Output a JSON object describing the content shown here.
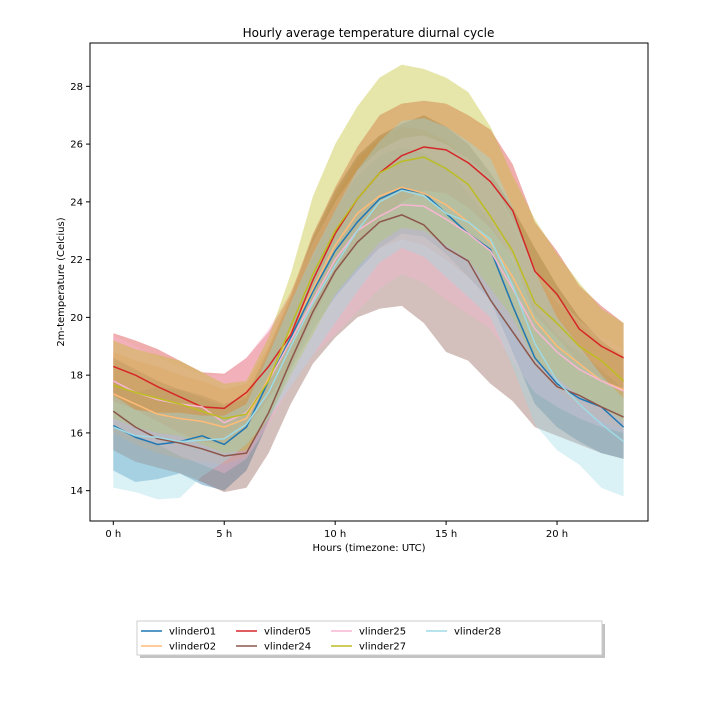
{
  "chart_data": {
    "type": "line",
    "title": "Hourly average temperature diurnal cycle",
    "xlabel": "Hours (timezone: UTC)",
    "ylabel": "2m-temperature (Celcius)",
    "xlim": [
      -1.05,
      24.1
    ],
    "ylim": [
      12.95,
      29.5
    ],
    "x": [
      0,
      1,
      2,
      3,
      4,
      5,
      6,
      7,
      8,
      9,
      10,
      11,
      12,
      13,
      14,
      15,
      16,
      17,
      18,
      19,
      20,
      21,
      22,
      23
    ],
    "xticks": [
      0,
      5,
      10,
      15,
      20
    ],
    "xtick_labels": [
      "0 h",
      "5 h",
      "10 h",
      "15 h",
      "20 h"
    ],
    "yticks": [
      14,
      16,
      18,
      20,
      22,
      24,
      26,
      28
    ],
    "ytick_labels": [
      "14",
      "16",
      "18",
      "20",
      "22",
      "24",
      "26",
      "28"
    ],
    "grid": false,
    "legend_position": "bottom-center",
    "legend_columns": 5,
    "series": [
      {
        "name": "vlinder01",
        "color": "#1f77b4",
        "mean": [
          16.25,
          15.85,
          15.6,
          15.7,
          15.9,
          15.6,
          16.2,
          17.8,
          19.3,
          20.9,
          22.3,
          23.3,
          24.1,
          24.45,
          24.3,
          23.6,
          22.9,
          22.35,
          20.4,
          18.6,
          17.7,
          17.2,
          16.9,
          16.2
        ],
        "upper": [
          17.8,
          17.4,
          17.6,
          17.5,
          17.2,
          16.9,
          17.2,
          18.7,
          20.5,
          22.1,
          23.7,
          24.9,
          25.6,
          25.9,
          25.7,
          25.2,
          24.3,
          23.3,
          22.0,
          20.3,
          19.4,
          18.8,
          18.2,
          17.5
        ],
        "lower": [
          14.7,
          14.3,
          14.4,
          14.6,
          14.2,
          14.0,
          14.7,
          16.4,
          18.2,
          19.6,
          20.7,
          21.6,
          22.4,
          22.9,
          22.8,
          22.2,
          21.4,
          20.6,
          18.8,
          17.0,
          16.2,
          15.7,
          15.3,
          15.1
        ]
      },
      {
        "name": "vlinder02",
        "color": "#ffbb78",
        "mean": [
          17.35,
          17.0,
          16.65,
          16.5,
          16.4,
          16.2,
          16.5,
          17.9,
          19.5,
          21.0,
          22.5,
          23.6,
          24.2,
          24.5,
          24.3,
          23.9,
          23.3,
          22.6,
          21.4,
          19.9,
          19.0,
          18.4,
          17.8,
          17.5
        ],
        "upper": [
          18.8,
          18.5,
          18.3,
          18.0,
          17.8,
          17.5,
          17.7,
          19.0,
          20.9,
          22.6,
          24.2,
          25.5,
          26.2,
          26.6,
          26.5,
          26.1,
          25.5,
          24.7,
          23.2,
          21.5,
          20.5,
          19.8,
          19.1,
          18.7
        ],
        "lower": [
          16.0,
          15.6,
          15.3,
          15.1,
          15.0,
          14.9,
          15.2,
          16.6,
          18.2,
          19.5,
          20.8,
          21.8,
          22.4,
          22.7,
          22.5,
          22.0,
          21.4,
          20.7,
          19.6,
          18.3,
          17.5,
          16.9,
          16.4,
          16.1
        ]
      },
      {
        "name": "vlinder05",
        "color": "#d62728",
        "mean": [
          18.3,
          18.0,
          17.6,
          17.25,
          16.9,
          16.85,
          17.4,
          18.3,
          19.4,
          21.3,
          22.9,
          24.1,
          25.0,
          25.6,
          25.9,
          25.8,
          25.35,
          24.7,
          23.7,
          21.6,
          20.8,
          19.6,
          19.0,
          18.6
        ],
        "upper": [
          19.45,
          19.2,
          18.9,
          18.5,
          18.1,
          18.05,
          18.6,
          19.5,
          20.8,
          22.9,
          24.5,
          25.9,
          27.0,
          27.4,
          27.5,
          27.4,
          27.0,
          26.5,
          25.3,
          23.3,
          22.3,
          21.1,
          20.4,
          19.8
        ],
        "lower": [
          17.1,
          16.8,
          16.4,
          16.0,
          15.7,
          15.6,
          16.2,
          17.2,
          18.3,
          20.0,
          21.5,
          22.6,
          23.4,
          24.0,
          24.4,
          24.3,
          23.8,
          23.1,
          22.1,
          20.1,
          19.3,
          18.4,
          17.9,
          17.4
        ]
      },
      {
        "name": "vlinder24",
        "color": "#8c564b",
        "mean": [
          16.75,
          16.2,
          15.8,
          15.65,
          15.45,
          15.2,
          15.3,
          16.7,
          18.5,
          20.2,
          21.6,
          22.6,
          23.3,
          23.55,
          23.2,
          22.4,
          21.95,
          20.6,
          19.5,
          18.4,
          17.6,
          17.3,
          16.9,
          16.55
        ],
        "upper": [
          18.6,
          18.2,
          17.8,
          17.5,
          17.3,
          17.0,
          17.3,
          18.9,
          20.7,
          22.8,
          24.4,
          25.6,
          26.3,
          26.7,
          27.0,
          26.6,
          26.0,
          25.0,
          23.8,
          22.4,
          21.1,
          20.0,
          19.2,
          18.6
        ],
        "lower": [
          15.4,
          15.0,
          14.8,
          14.6,
          14.3,
          13.95,
          14.1,
          15.3,
          17.0,
          18.4,
          19.3,
          20.0,
          20.3,
          20.4,
          19.8,
          18.8,
          18.5,
          17.7,
          17.1,
          16.2,
          15.9,
          15.6,
          15.3,
          15.1
        ]
      },
      {
        "name": "vlinder25",
        "color": "#f7b6d2",
        "mean": [
          17.8,
          17.4,
          17.15,
          17.0,
          16.9,
          16.35,
          16.7,
          17.8,
          19.2,
          20.6,
          22.0,
          23.0,
          23.5,
          23.9,
          23.85,
          23.4,
          22.9,
          22.3,
          21.0,
          19.6,
          18.8,
          18.2,
          17.8,
          17.45
        ],
        "upper": [
          19.4,
          19.0,
          18.6,
          18.3,
          18.0,
          18.0,
          18.6,
          19.6,
          20.9,
          22.6,
          24.0,
          25.1,
          25.8,
          26.2,
          26.3,
          26.0,
          25.5,
          24.8,
          23.4,
          21.7,
          20.7,
          19.9,
          19.3,
          18.9
        ],
        "lower": [
          16.3,
          15.9,
          15.6,
          15.2,
          14.9,
          14.6,
          15.1,
          16.3,
          17.6,
          18.7,
          19.4,
          20.2,
          21.0,
          21.5,
          21.2,
          20.6,
          20.1,
          19.6,
          18.5,
          17.4,
          16.9,
          16.5,
          16.2,
          16.0
        ]
      },
      {
        "name": "vlinder27",
        "color": "#bcbd22",
        "mean": [
          17.65,
          17.4,
          17.2,
          17.0,
          16.75,
          16.5,
          16.65,
          17.8,
          19.7,
          21.5,
          23.0,
          24.1,
          25.0,
          25.4,
          25.55,
          25.15,
          24.6,
          23.5,
          22.3,
          20.5,
          19.8,
          19.0,
          18.5,
          17.8
        ],
        "upper": [
          19.2,
          18.9,
          18.7,
          18.5,
          18.1,
          17.7,
          17.8,
          19.3,
          21.5,
          24.2,
          26.0,
          27.3,
          28.3,
          28.75,
          28.6,
          28.3,
          27.8,
          26.6,
          24.9,
          23.4,
          22.2,
          21.2,
          20.3,
          19.8
        ],
        "lower": [
          16.5,
          16.2,
          16.0,
          15.9,
          15.6,
          15.3,
          15.4,
          16.5,
          18.0,
          19.4,
          20.8,
          21.7,
          22.6,
          23.1,
          23.0,
          22.5,
          22.0,
          21.0,
          20.0,
          18.5,
          17.9,
          17.3,
          16.9,
          16.4
        ]
      },
      {
        "name": "vlinder28",
        "color": "#9edae5",
        "mean": [
          16.2,
          15.9,
          15.85,
          15.7,
          15.75,
          15.8,
          16.3,
          17.4,
          19.0,
          20.5,
          21.8,
          23.0,
          24.0,
          24.4,
          24.2,
          23.6,
          23.3,
          22.7,
          21.1,
          19.1,
          17.8,
          17.0,
          16.3,
          15.7
        ],
        "upper": [
          17.3,
          16.8,
          16.7,
          16.7,
          16.6,
          16.6,
          17.0,
          18.7,
          20.5,
          22.2,
          23.7,
          25.1,
          26.1,
          26.8,
          26.9,
          26.6,
          26.1,
          25.5,
          23.8,
          21.6,
          20.0,
          19.0,
          18.0,
          17.2
        ],
        "lower": [
          14.1,
          13.95,
          13.7,
          13.75,
          14.5,
          15.0,
          15.6,
          16.5,
          17.6,
          18.7,
          19.8,
          20.9,
          21.9,
          22.4,
          22.1,
          21.4,
          20.7,
          20.0,
          18.3,
          16.3,
          15.4,
          14.9,
          14.1,
          13.8
        ]
      }
    ]
  }
}
